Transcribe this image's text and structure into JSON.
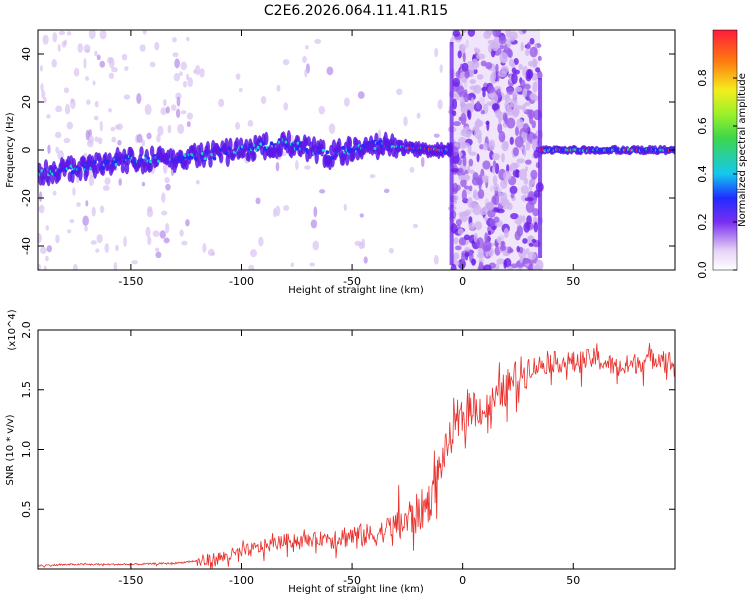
{
  "title": "C2E6.2026.064.11.41.R15",
  "colorbar": {
    "label": "Normalized spectral amplitude",
    "ticks": [
      "0.0",
      "0.2",
      "0.4",
      "0.6",
      "0.8"
    ],
    "range": [
      0,
      1
    ]
  },
  "chart_data": [
    {
      "type": "heatmap",
      "name": "spectrogram",
      "xlabel": "Height of straight line (km)",
      "ylabel": "Frequency (Hz)",
      "xlim": [
        -192,
        96
      ],
      "ylim": [
        -50,
        50
      ],
      "xticks": [
        -150,
        -100,
        -50,
        0,
        50
      ],
      "xtick_labels": [
        "-150",
        "-100",
        "-50",
        "0",
        "50"
      ],
      "yticks": [
        -40,
        -20,
        0,
        20,
        40
      ],
      "ytick_labels": [
        "-40",
        "-20",
        "0",
        "20",
        "40"
      ],
      "ridge": {
        "x": [
          -192,
          -150,
          -120,
          -100,
          -80,
          -60,
          -40,
          -25,
          -10,
          -5,
          35,
          50,
          96
        ],
        "y": [
          -10,
          -4,
          -3,
          0,
          3,
          -2,
          2,
          1,
          0,
          0,
          0,
          0,
          0
        ]
      },
      "noisy_band": [
        -5,
        35
      ]
    },
    {
      "type": "line",
      "name": "snr",
      "xlabel": "Height of straight line (km)",
      "ylabel": "SNR (10 * v/v)",
      "scale_note": "(x10^4)",
      "xlim": [
        -192,
        96
      ],
      "ylim": [
        0,
        2.0
      ],
      "xticks": [
        -150,
        -100,
        -50,
        0,
        50
      ],
      "xtick_labels": [
        "-150",
        "-100",
        "-50",
        "0",
        "50"
      ],
      "yticks": [
        0.5,
        1.0,
        1.5,
        2.0
      ],
      "ytick_labels": [
        "0.5",
        "1.0",
        "1.5",
        "2.0"
      ],
      "series": [
        {
          "name": "SNR",
          "color": "#e8302c",
          "x": [
            -192,
            -175,
            -150,
            -130,
            -115,
            -100,
            -90,
            -80,
            -70,
            -60,
            -50,
            -40,
            -30,
            -20,
            -15,
            -10,
            -5,
            0,
            5,
            10,
            15,
            20,
            25,
            30,
            40,
            50,
            60,
            70,
            80,
            90,
            96
          ],
          "y": [
            0.03,
            0.04,
            0.04,
            0.05,
            0.08,
            0.15,
            0.2,
            0.25,
            0.25,
            0.28,
            0.3,
            0.3,
            0.4,
            0.5,
            0.6,
            0.9,
            1.15,
            1.3,
            1.4,
            1.35,
            1.45,
            1.55,
            1.65,
            1.7,
            1.75,
            1.75,
            1.78,
            1.7,
            1.75,
            1.8,
            1.72
          ]
        }
      ]
    }
  ]
}
